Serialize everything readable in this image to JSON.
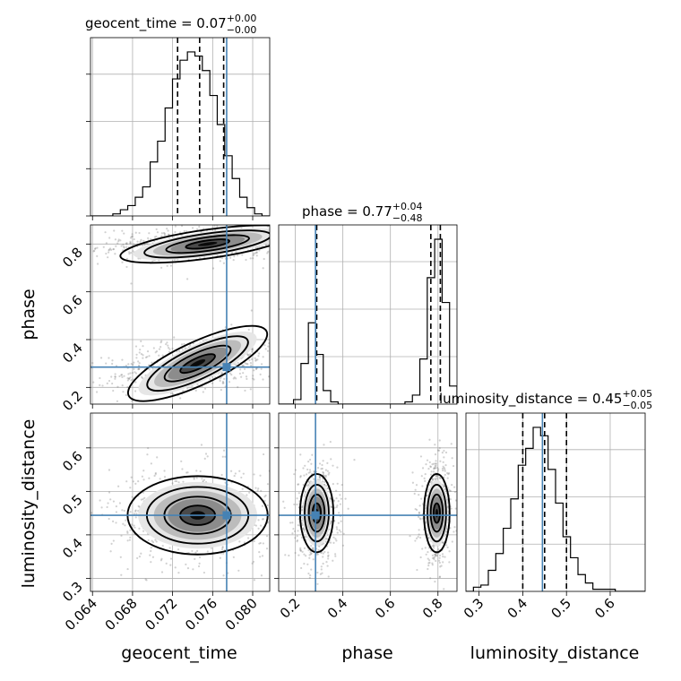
{
  "chart_data": {
    "type": "corner",
    "parameters": [
      "geocent_time",
      "phase",
      "luminosity_distance"
    ],
    "titles": {
      "geocent_time": {
        "name": "geocent_time",
        "median": "0.07",
        "plus": "+0.00",
        "minus": "−0.00"
      },
      "phase": {
        "name": "phase",
        "median": "0.77",
        "plus": "+0.04",
        "minus": "−0.48"
      },
      "luminosity_distance": {
        "name": "luminosity_distance",
        "median": "0.45",
        "plus": "+0.05",
        "minus": "−0.05"
      }
    },
    "truths": {
      "geocent_time": 0.0774,
      "phase": 0.285,
      "luminosity_distance": 0.445
    },
    "ranges": {
      "geocent_time": [
        0.0638,
        0.0817
      ],
      "phase": [
        0.13,
        0.88
      ],
      "luminosity_distance": [
        0.27,
        0.68
      ]
    },
    "ticks": {
      "geocent_time": [
        "0.064",
        "0.068",
        "0.072",
        "0.076",
        "0.080"
      ],
      "phase": [
        "0.2",
        "0.4",
        "0.6",
        "0.8"
      ],
      "luminosity_distance": [
        "0.3",
        "0.4",
        "0.5",
        "0.6"
      ]
    },
    "quantiles": {
      "geocent_time": [
        0.0725,
        0.0747,
        0.0771
      ],
      "phase": [
        0.29,
        0.77,
        0.81
      ],
      "luminosity_distance": [
        0.4,
        0.45,
        0.5
      ]
    },
    "histograms": {
      "geocent_time": {
        "edges": [
          0.0638,
          0.06454,
          0.06529,
          0.06603,
          0.06678,
          0.06752,
          0.06827,
          0.06901,
          0.06976,
          0.0705,
          0.07125,
          0.07199,
          0.07274,
          0.07348,
          0.07423,
          0.07497,
          0.07572,
          0.07646,
          0.07721,
          0.07795,
          0.0787,
          0.07944,
          0.08019,
          0.08093,
          0.0817
        ],
        "counts": [
          0,
          0,
          0,
          1,
          3,
          5,
          9,
          14,
          26,
          36,
          52,
          66,
          75,
          79,
          77,
          70,
          58,
          44,
          29,
          18,
          9,
          4,
          1,
          0
        ]
      },
      "phase": {
        "edges": [
          0.13,
          0.1612,
          0.1925,
          0.2238,
          0.255,
          0.2862,
          0.3175,
          0.3488,
          0.38,
          0.4112,
          0.4425,
          0.4738,
          0.505,
          0.5362,
          0.5675,
          0.5988,
          0.63,
          0.6612,
          0.6925,
          0.7238,
          0.755,
          0.7862,
          0.8175,
          0.8488,
          0.88
        ],
        "counts": [
          0,
          0,
          2,
          18,
          36,
          22,
          6,
          1,
          0,
          0,
          0,
          0,
          0,
          0,
          0,
          0,
          0,
          1,
          4,
          20,
          56,
          73,
          45,
          8
        ]
      },
      "luminosity_distance": {
        "edges": [
          0.27,
          0.2871,
          0.3042,
          0.3212,
          0.3383,
          0.3554,
          0.3725,
          0.3896,
          0.4067,
          0.4238,
          0.4408,
          0.4579,
          0.475,
          0.4921,
          0.5092,
          0.5263,
          0.5433,
          0.5604,
          0.5775,
          0.5946,
          0.6117,
          0.6288,
          0.6458,
          0.6629,
          0.68
        ],
        "counts": [
          0,
          2,
          3,
          10,
          18,
          30,
          44,
          60,
          68,
          78,
          74,
          58,
          42,
          26,
          16,
          8,
          4,
          1,
          1,
          1,
          0,
          0,
          0,
          0
        ]
      }
    },
    "contours_2d": {
      "geocent_time__phase": {
        "modes": [
          {
            "center": [
              0.0755,
              0.8
            ],
            "widths": [
              0.0044,
              0.03
            ],
            "angle_deg": 8
          },
          {
            "center": [
              0.0745,
              0.3
            ],
            "widths": [
              0.0038,
              0.045
            ],
            "angle_deg": 25
          }
        ]
      },
      "geocent_time__luminosity_distance": {
        "modes": [
          {
            "center": [
              0.0745,
              0.445
            ],
            "widths": [
              0.0035,
              0.045
            ],
            "angle_deg": 0
          }
        ]
      },
      "phase__luminosity_distance": {
        "modes": [
          {
            "center": [
              0.29,
              0.45
            ],
            "widths": [
              0.035,
              0.045
            ],
            "angle_deg": 0
          },
          {
            "center": [
              0.795,
              0.45
            ],
            "widths": [
              0.027,
              0.045
            ],
            "angle_deg": 0
          }
        ]
      }
    }
  }
}
